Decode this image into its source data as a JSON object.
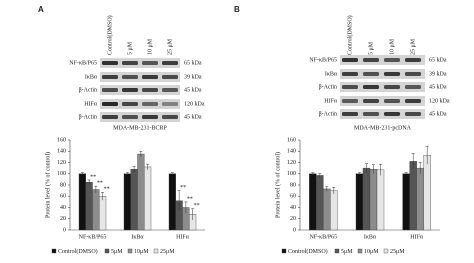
{
  "blots": [
    {
      "label": "A",
      "columns": [
        "Control(DMSO)",
        "5 μM",
        "10 μM",
        "25 μM"
      ],
      "rows": [
        {
          "protein": "NF-κB/P65",
          "size": "65 kDa"
        },
        {
          "protein": "IκBα",
          "size": "39 kDa"
        },
        {
          "protein": "β-Actin",
          "size": "45 kDa"
        },
        {
          "protein": "HIFα",
          "size": "120 kDa"
        },
        {
          "protein": "β-Actin",
          "size": "45 kDa"
        }
      ],
      "cell_line": "MDA-MB-231-BCRP"
    },
    {
      "label": "B",
      "columns": [
        "Control(DMSO)",
        "5 μM",
        "10 μM",
        "25 μM"
      ],
      "rows": [
        {
          "protein": "NF-κB/P65",
          "size": "65 kDa"
        },
        {
          "protein": "IκBα",
          "size": "39 kDa"
        },
        {
          "protein": "β-Actin",
          "size": "45 kDa"
        },
        {
          "protein": "HIFα",
          "size": "120 kDa"
        },
        {
          "protein": "β-Actin",
          "size": "45 kDa"
        }
      ],
      "cell_line": "MDA-MB-231-pcDNA"
    }
  ],
  "chart_data": [
    {
      "type": "bar",
      "y_label": "Protein level (% of control)",
      "categories": [
        "NF-κB/P65",
        "IκBα",
        "HIFα"
      ],
      "ylim": [
        0,
        160
      ],
      "yticks": [
        0,
        20,
        40,
        60,
        80,
        100,
        120,
        140,
        160
      ],
      "series": [
        {
          "name": "Control(DMSO)",
          "color": "#111111",
          "values": [
            100,
            100,
            100
          ],
          "errors": [
            2,
            2,
            2
          ],
          "significance": [
            null,
            null,
            null
          ]
        },
        {
          "name": "5μM",
          "color": "#555555",
          "values": [
            85,
            108,
            52
          ],
          "errors": [
            4,
            5,
            18
          ],
          "significance": [
            "**",
            null,
            "**"
          ]
        },
        {
          "name": "10μM",
          "color": "#8c8c8c",
          "values": [
            72,
            135,
            40
          ],
          "errors": [
            6,
            5,
            10
          ],
          "significance": [
            "**",
            null,
            "**"
          ]
        },
        {
          "name": "25μM",
          "color": "#e6e6e6",
          "values": [
            60,
            112,
            28
          ],
          "errors": [
            7,
            5,
            10
          ],
          "significance": [
            "**",
            null,
            "**"
          ]
        }
      ]
    },
    {
      "type": "bar",
      "y_label": "Protein level (% of control)",
      "categories": [
        "NF-κB/P65",
        "IκBα",
        "HIFα"
      ],
      "ylim": [
        0,
        160
      ],
      "yticks": [
        0,
        20,
        40,
        60,
        80,
        100,
        120,
        140,
        160
      ],
      "series": [
        {
          "name": "Control(DMSO)",
          "color": "#111111",
          "values": [
            100,
            100,
            100
          ],
          "errors": [
            2,
            2,
            2
          ],
          "significance": [
            null,
            null,
            null
          ]
        },
        {
          "name": "5μM",
          "color": "#555555",
          "values": [
            97,
            110,
            122
          ],
          "errors": [
            3,
            8,
            14
          ],
          "significance": [
            null,
            null,
            null
          ]
        },
        {
          "name": "10μM",
          "color": "#8c8c8c",
          "values": [
            73,
            108,
            110
          ],
          "errors": [
            4,
            8,
            10
          ],
          "significance": [
            null,
            null,
            null
          ]
        },
        {
          "name": "25μM",
          "color": "#e6e6e6",
          "values": [
            70,
            107,
            133
          ],
          "errors": [
            6,
            10,
            16
          ],
          "significance": [
            null,
            "",
            null
          ]
        }
      ]
    }
  ]
}
